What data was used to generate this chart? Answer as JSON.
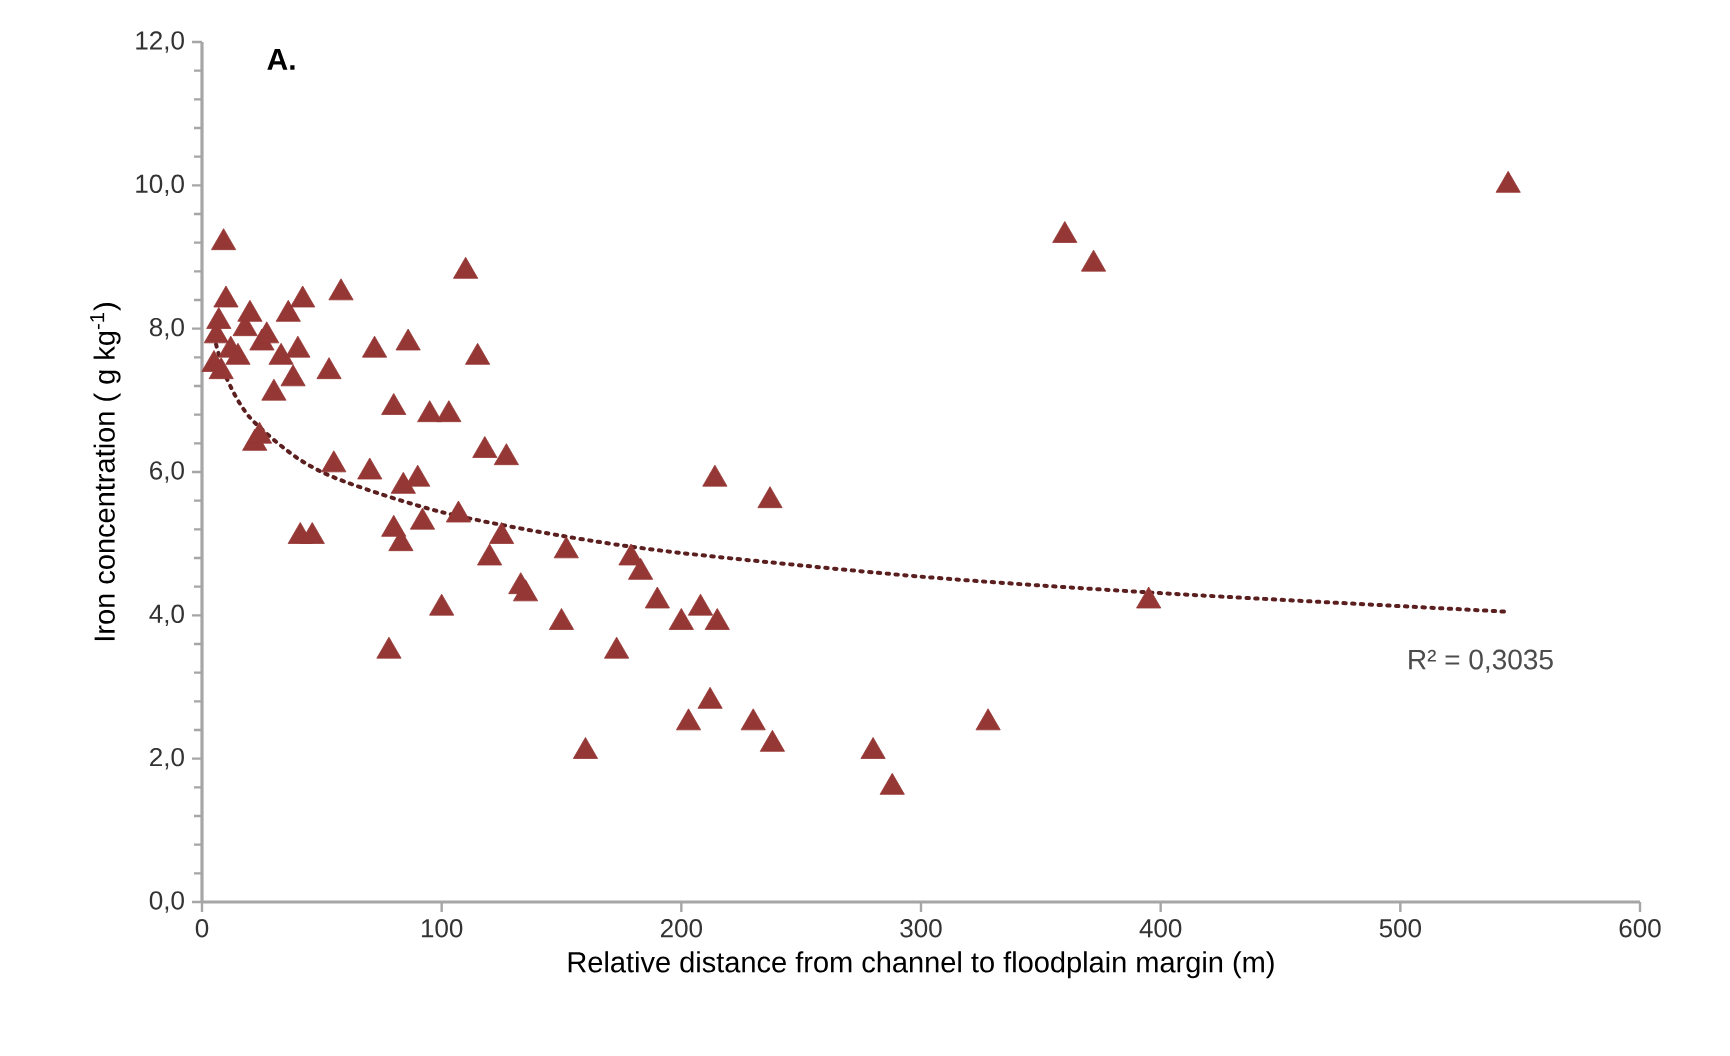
{
  "chart_data": {
    "type": "scatter",
    "title": "A.",
    "xlabel": "Relative distance from channel to floodplain margin (m)",
    "ylabel": "Iron concentration ( g kg$^{-1}$)",
    "xlim": [
      0,
      600
    ],
    "xticks": [
      0,
      100,
      200,
      300,
      400,
      500,
      600
    ],
    "ylim": [
      0,
      12
    ],
    "yticks": [
      {
        "value": 0,
        "label": "0,0"
      },
      {
        "value": 2,
        "label": "2,0"
      },
      {
        "value": 4,
        "label": "4,0"
      },
      {
        "value": 6,
        "label": "6,0"
      },
      {
        "value": 8,
        "label": "8,0"
      },
      {
        "value": 10,
        "label": "10,0"
      },
      {
        "value": 12,
        "label": "12,0"
      }
    ],
    "grid": false,
    "series": [
      {
        "color": "#953735",
        "marker": "triangle",
        "x": [
          5,
          6,
          7,
          8,
          9,
          10,
          12,
          15,
          18,
          20,
          22,
          24,
          25,
          27,
          30,
          33,
          36,
          38,
          40,
          41,
          42,
          46,
          53,
          55,
          58,
          70,
          72,
          78,
          80,
          80,
          83,
          84,
          86,
          90,
          92,
          95,
          100,
          103,
          107,
          110,
          115,
          118,
          120,
          125,
          127,
          133,
          135,
          150,
          152,
          160,
          173,
          179,
          183,
          190,
          200,
          203,
          208,
          212,
          214,
          215,
          230,
          237,
          238,
          280,
          288,
          328,
          360,
          372,
          395,
          545
        ],
        "values": [
          7.5,
          7.9,
          8.1,
          7.4,
          9.2,
          8.4,
          7.7,
          7.6,
          8.0,
          8.2,
          6.4,
          6.5,
          7.8,
          7.9,
          7.1,
          7.6,
          8.2,
          7.3,
          7.7,
          5.1,
          8.4,
          5.1,
          7.4,
          6.1,
          8.5,
          6.0,
          7.7,
          3.5,
          6.9,
          5.2,
          5.0,
          5.8,
          7.8,
          5.9,
          5.3,
          6.8,
          4.1,
          6.8,
          5.4,
          8.8,
          7.6,
          6.3,
          4.8,
          5.1,
          6.2,
          4.4,
          4.3,
          3.9,
          4.9,
          2.1,
          3.5,
          4.8,
          4.6,
          4.2,
          3.9,
          2.5,
          4.1,
          2.8,
          5.9,
          3.9,
          2.5,
          5.6,
          2.2,
          2.1,
          1.6,
          2.5,
          9.3,
          8.9,
          4.2,
          10.0
        ]
      },
      {
        "type": "line",
        "color": "#5c1f1f",
        "line_style": "dotted",
        "marker": "none",
        "x": [
          5,
          10,
          20,
          40,
          60,
          100,
          150,
          200,
          300,
          400,
          545
        ],
        "values": [
          7.9,
          7.33,
          6.76,
          6.19,
          5.86,
          5.44,
          5.11,
          4.87,
          4.54,
          4.31,
          4.05
        ]
      }
    ],
    "annotations": [
      "R² = 0,3035"
    ]
  }
}
